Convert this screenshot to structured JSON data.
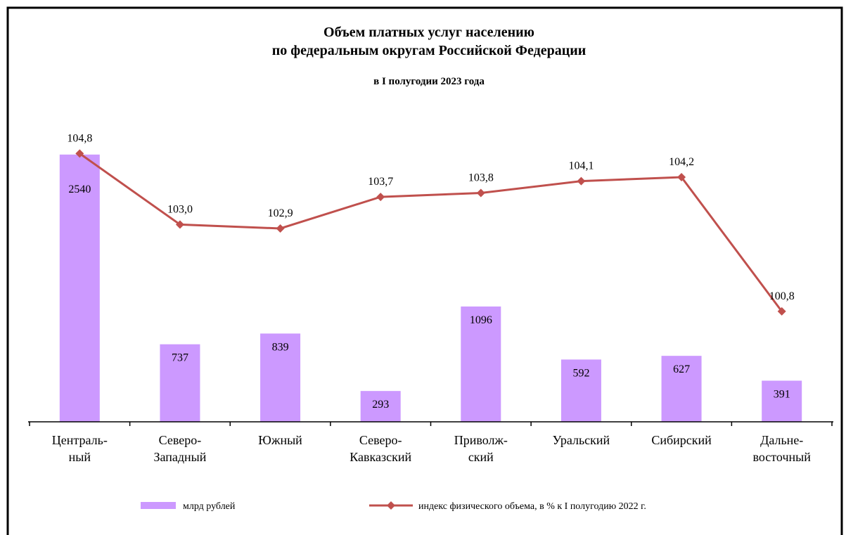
{
  "chart_data": {
    "type": "bar-line",
    "title": "Объем платных услуг населению\nпо федеральным округам Российской Федерации",
    "subtitle": "в I полугодии 2023 года",
    "categories": [
      "Централь-\nный",
      "Северо-\nЗападный",
      "Южный",
      "Северо-\nКавказский",
      "Приволж-\nский",
      "Уральский",
      "Сибирский",
      "Дальне-\nвосточный"
    ],
    "series": [
      {
        "name": "млрд рублей",
        "type": "bar",
        "color": "#cc99ff",
        "values": [
          2540,
          737,
          839,
          293,
          1096,
          592,
          627,
          391
        ]
      },
      {
        "name": "индекс физического объема, в % к I полугодию 2022 г.",
        "type": "line",
        "axis": "y2",
        "color": "#c0504d",
        "values": [
          104.8,
          103.0,
          102.9,
          103.7,
          103.8,
          104.1,
          104.2,
          100.8
        ],
        "value_labels": [
          "104,8",
          "103,0",
          "102,9",
          "103,7",
          "103,8",
          "104,1",
          "104,2",
          "100,8"
        ]
      }
    ],
    "ylim": [
      0,
      3000
    ],
    "y2lim": [
      98,
      106
    ],
    "legend": "bottom"
  }
}
